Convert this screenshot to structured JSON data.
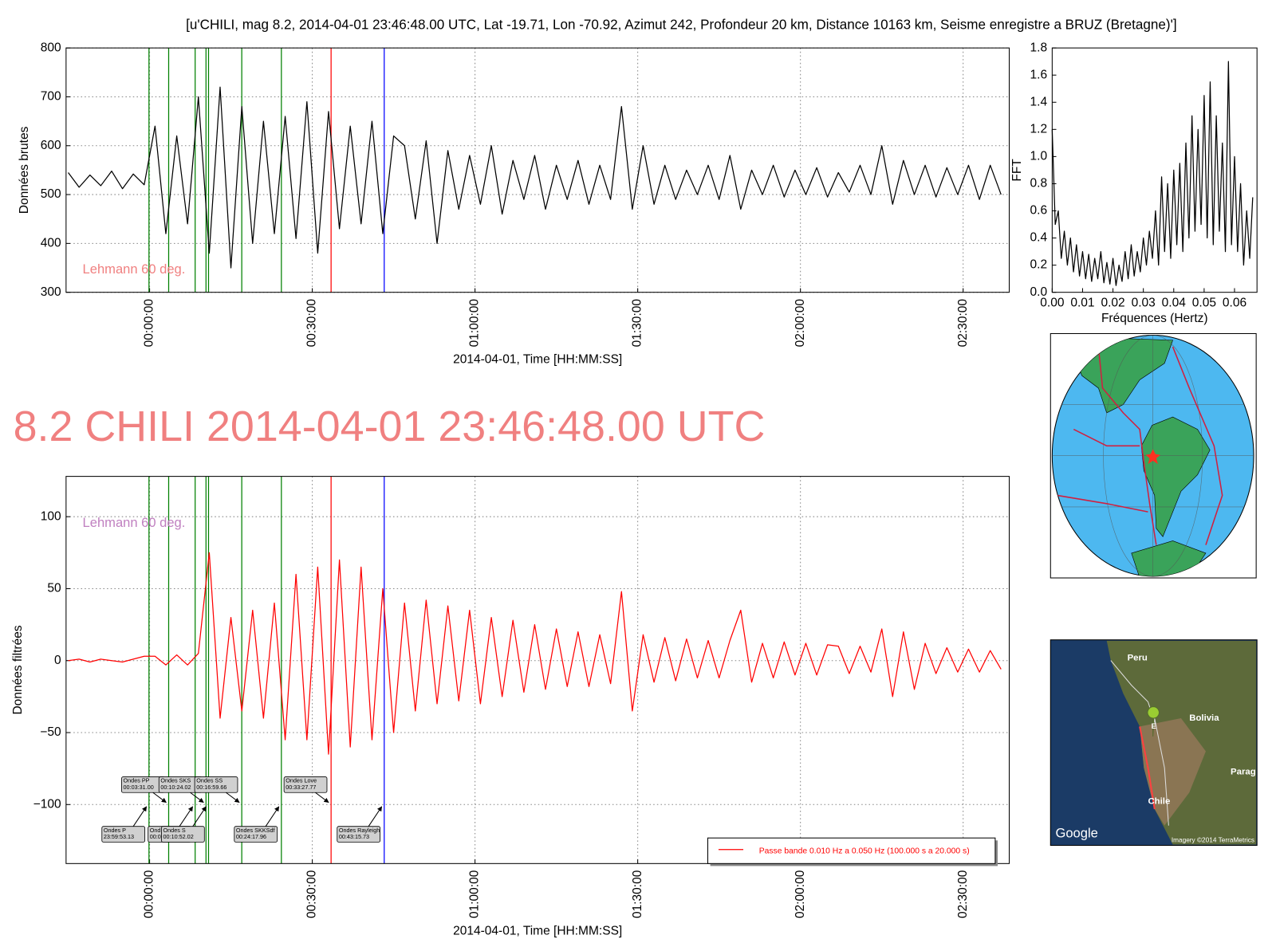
{
  "heading": "8.2 CHILI 2014-04-01 23:46:48.00 UTC",
  "heading_color": "#f08080",
  "phases": [
    {
      "name": "Ondes P",
      "time": "23:59:53.13",
      "x": -0.114,
      "color": "green"
    },
    {
      "name": "Ondes PP",
      "time": "00:03:31.00",
      "x": 3.517,
      "color": "green"
    },
    {
      "name": "Ond",
      "time": "00:0",
      "x": 8.4,
      "color": "green"
    },
    {
      "name": "Ondes SKS",
      "time": "00:10:24.02",
      "x": 10.4,
      "color": "green"
    },
    {
      "name": "Ondes S",
      "time": "00:10:52.02",
      "x": 10.867,
      "color": "green"
    },
    {
      "name": "Ondes SS",
      "time": "00:16:59.66",
      "x": 16.994,
      "color": "green"
    },
    {
      "name": "Ondes SKKSdf",
      "time": "00:24:17.96",
      "x": 24.299,
      "color": "green"
    },
    {
      "name": "Ondes Love",
      "time": "00:33:27.77",
      "x": 33.463,
      "color": "red"
    },
    {
      "name": "Ondes Rayleigh",
      "time": "00:43:15.73",
      "x": 43.262,
      "color": "blue"
    }
  ],
  "satellite_map": {
    "labels": [
      "Peru",
      "Bolivia",
      "Chile",
      "Parag",
      "E"
    ],
    "brand": "Google",
    "credit": "Imagery ©2014 TerraMetrics"
  },
  "chart_data": [
    {
      "type": "line",
      "title": "[u'CHILI, mag 8.2, 2014-04-01 23:46:48.00 UTC, Lat -19.71, Lon -70.92, Azimut 242, Profondeur 20 km, Distance 10163 km, Seisme enregistre a BRUZ (Bretagne)']",
      "ylabel": "Données brutes",
      "xlabel": "2014-04-01, Time [HH:MM:SS]",
      "annotation": "Lehmann 60 deg.",
      "annotation_color": "#f08080",
      "annotation_corner": "lower left",
      "show_phases": true,
      "phase_labels": false,
      "grid": true,
      "xlim": [
        -15.4,
        158.5
      ],
      "xticks": [
        {
          "value": 0,
          "label": "00:00:00"
        },
        {
          "value": 30,
          "label": "00:30:00"
        },
        {
          "value": 60,
          "label": "01:00:00"
        },
        {
          "value": 90,
          "label": "01:30:00"
        },
        {
          "value": 120,
          "label": "02:00:00"
        },
        {
          "value": 150,
          "label": "02:30:00"
        }
      ],
      "ylim": [
        300,
        800
      ],
      "yticks": [
        300,
        400,
        500,
        600,
        700,
        800
      ],
      "x": [
        -15,
        -13,
        -11,
        -9,
        -7,
        -5,
        -3,
        -1,
        1,
        3,
        5,
        7,
        9,
        11,
        13,
        15,
        17,
        19,
        21,
        23,
        25,
        27,
        29,
        31,
        33,
        35,
        37,
        39,
        41,
        43,
        45,
        47,
        49,
        51,
        53,
        55,
        57,
        59,
        61,
        63,
        65,
        67,
        69,
        71,
        73,
        75,
        77,
        79,
        81,
        83,
        85,
        87,
        89,
        91,
        93,
        95,
        97,
        99,
        101,
        103,
        105,
        107,
        109,
        111,
        113,
        115,
        117,
        119,
        121,
        123,
        125,
        127,
        129,
        131,
        133,
        135,
        137,
        139,
        141,
        143,
        145,
        147,
        149,
        151,
        153,
        155,
        157
      ],
      "series": [
        {
          "color": "#000000",
          "values": [
            545,
            515,
            540,
            518,
            548,
            512,
            542,
            520,
            640,
            420,
            620,
            440,
            700,
            380,
            720,
            350,
            680,
            400,
            650,
            420,
            660,
            410,
            690,
            380,
            670,
            430,
            640,
            440,
            650,
            420,
            620,
            600,
            450,
            610,
            400,
            590,
            470,
            580,
            480,
            600,
            460,
            570,
            490,
            580,
            470,
            560,
            490,
            570,
            480,
            560,
            490,
            680,
            470,
            600,
            480,
            560,
            490,
            550,
            500,
            560,
            490,
            580,
            470,
            550,
            500,
            560,
            495,
            550,
            500,
            555,
            495,
            545,
            505,
            560,
            500,
            600,
            480,
            570,
            500,
            560,
            495,
            555,
            500,
            560,
            490,
            560,
            500
          ]
        }
      ]
    },
    {
      "type": "line",
      "ylabel": "FFT",
      "xlabel": "Fréquences (Hertz)",
      "grid": false,
      "xlim": [
        0,
        0.0674
      ],
      "xticks": [
        {
          "value": 0,
          "label": "0.00"
        },
        0.01,
        0.02,
        0.03,
        0.04,
        0.05,
        0.06
      ],
      "ylim": [
        0,
        1.8
      ],
      "yticks": [
        {
          "value": 0,
          "label": "0.0"
        },
        0.2,
        0.4,
        0.6,
        0.8,
        {
          "value": 1,
          "label": "1.0"
        },
        1.2,
        1.4,
        1.6,
        1.8
      ],
      "x": [
        0,
        0.001,
        0.002,
        0.003,
        0.004,
        0.005,
        0.006,
        0.007,
        0.008,
        0.009,
        0.01,
        0.011,
        0.012,
        0.013,
        0.014,
        0.015,
        0.016,
        0.017,
        0.018,
        0.019,
        0.02,
        0.021,
        0.022,
        0.023,
        0.024,
        0.025,
        0.026,
        0.027,
        0.028,
        0.029,
        0.03,
        0.031,
        0.032,
        0.033,
        0.034,
        0.035,
        0.036,
        0.037,
        0.038,
        0.039,
        0.04,
        0.041,
        0.042,
        0.043,
        0.044,
        0.045,
        0.046,
        0.047,
        0.048,
        0.049,
        0.05,
        0.051,
        0.052,
        0.053,
        0.054,
        0.055,
        0.056,
        0.057,
        0.058,
        0.059,
        0.06,
        0.061,
        0.062,
        0.063,
        0.064,
        0.065,
        0.066
      ],
      "series": [
        {
          "color": "#000000",
          "values": [
            1.2,
            0.5,
            0.6,
            0.25,
            0.45,
            0.2,
            0.4,
            0.15,
            0.35,
            0.12,
            0.3,
            0.1,
            0.28,
            0.08,
            0.25,
            0.1,
            0.3,
            0.07,
            0.22,
            0.06,
            0.25,
            0.05,
            0.2,
            0.08,
            0.3,
            0.1,
            0.35,
            0.12,
            0.3,
            0.15,
            0.4,
            0.2,
            0.45,
            0.25,
            0.6,
            0.2,
            0.85,
            0.3,
            0.8,
            0.25,
            0.9,
            0.35,
            0.95,
            0.3,
            1.1,
            0.4,
            1.3,
            0.45,
            1.2,
            0.5,
            1.45,
            0.4,
            1.55,
            0.35,
            1.3,
            0.45,
            1.1,
            0.3,
            1.7,
            0.35,
            1.0,
            0.3,
            0.8,
            0.2,
            0.6,
            0.25,
            0.7
          ]
        }
      ]
    },
    {
      "type": "line",
      "ylabel": "Données filtrées",
      "xlabel": "2014-04-01, Time [HH:MM:SS]",
      "annotation": "Lehmann 60 deg.",
      "annotation_color": "#c080c0",
      "annotation_corner": "upper left",
      "show_phases": true,
      "phase_labels": true,
      "grid": true,
      "legend": "lower right",
      "xlim": [
        -15.4,
        158.5
      ],
      "xticks": [
        {
          "value": 0,
          "label": "00:00:00"
        },
        {
          "value": 30,
          "label": "00:30:00"
        },
        {
          "value": 60,
          "label": "01:00:00"
        },
        {
          "value": 90,
          "label": "01:30:00"
        },
        {
          "value": 120,
          "label": "02:00:00"
        },
        {
          "value": 150,
          "label": "02:30:00"
        }
      ],
      "ylim": [
        -141,
        128
      ],
      "yticks": [
        {
          "value": -100,
          "label": "−100"
        },
        {
          "value": -50,
          "label": "−50"
        },
        0,
        50,
        100
      ],
      "x": [
        -15,
        -13,
        -11,
        -9,
        -7,
        -5,
        -3,
        -1,
        1,
        3,
        5,
        7,
        9,
        11,
        13,
        15,
        17,
        19,
        21,
        23,
        25,
        27,
        29,
        31,
        33,
        35,
        37,
        39,
        41,
        43,
        45,
        47,
        49,
        51,
        53,
        55,
        57,
        59,
        61,
        63,
        65,
        67,
        69,
        71,
        73,
        75,
        77,
        79,
        81,
        83,
        85,
        87,
        89,
        91,
        93,
        95,
        97,
        99,
        101,
        103,
        105,
        107,
        109,
        111,
        113,
        115,
        117,
        119,
        121,
        123,
        125,
        127,
        129,
        131,
        133,
        135,
        137,
        139,
        141,
        143,
        145,
        147,
        149,
        151,
        153,
        155,
        157
      ],
      "series": [
        {
          "name": "Passe bande 0.010 Hz a 0.050 Hz (100.000 s a 20.000 s)",
          "color": "#ff0000",
          "values": [
            0,
            1,
            -1,
            1,
            0,
            -1,
            1,
            3,
            3,
            -3,
            4,
            -3,
            5,
            75,
            -40,
            30,
            -35,
            35,
            -40,
            40,
            -55,
            60,
            -55,
            65,
            -65,
            70,
            -60,
            65,
            -55,
            50,
            -50,
            40,
            -35,
            42,
            -30,
            38,
            -28,
            35,
            -30,
            30,
            -25,
            28,
            -22,
            25,
            -20,
            22,
            -18,
            20,
            -18,
            18,
            -16,
            48,
            -35,
            18,
            -15,
            16,
            -14,
            15,
            -12,
            14,
            -12,
            14,
            35,
            -15,
            12,
            -12,
            13,
            -10,
            12,
            -10,
            11,
            10,
            -9,
            10,
            -8,
            22,
            -25,
            20,
            -20,
            12,
            -9,
            9,
            -8,
            8,
            -8,
            7,
            -6
          ]
        }
      ]
    }
  ]
}
